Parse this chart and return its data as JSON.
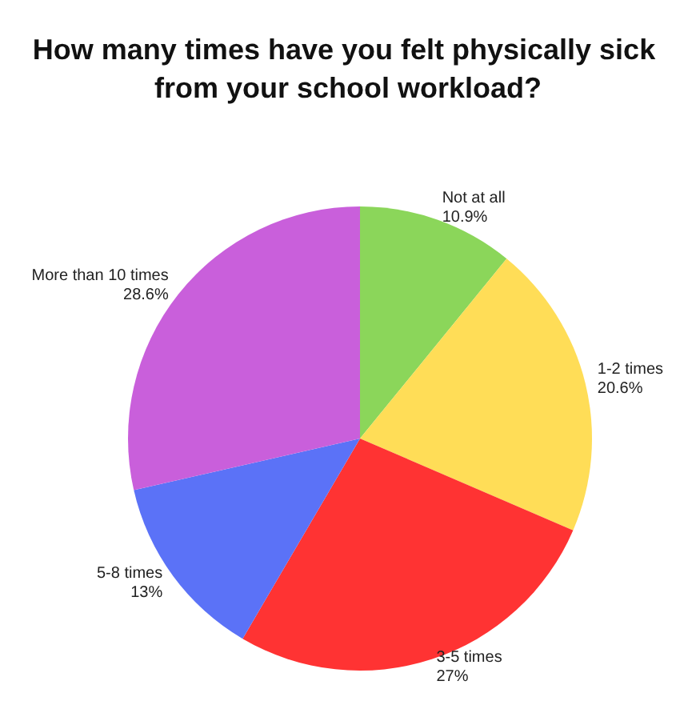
{
  "chart_data": {
    "type": "pie",
    "title": "How many times have you felt physically sick from your school workload?",
    "categories": [
      "Not at all",
      "1-2 times",
      "3-5 times",
      "5-8 times",
      "More than 10 times"
    ],
    "values": [
      10.9,
      20.6,
      27,
      13,
      28.6
    ],
    "value_labels": [
      "10.9%",
      "20.6%",
      "27%",
      "13%",
      "28.6%"
    ],
    "colors": [
      "#8bd65a",
      "#ffdd57",
      "#ff3333",
      "#5b72f7",
      "#c95fdb"
    ],
    "legend": false
  }
}
